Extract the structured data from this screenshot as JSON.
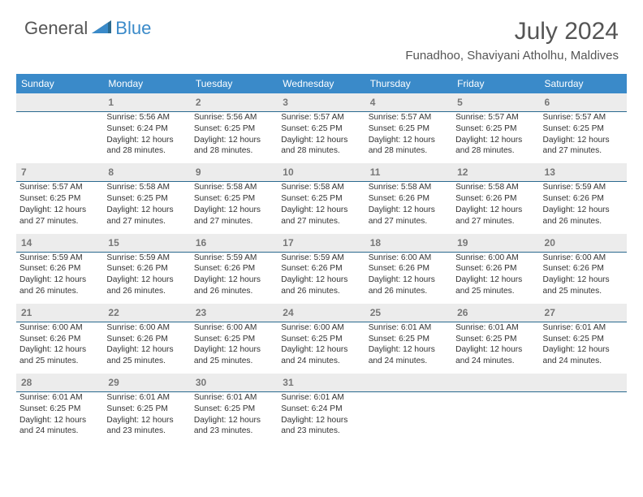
{
  "brand": {
    "text1": "General",
    "text2": "Blue"
  },
  "title": "July 2024",
  "location": "Funadhoo, Shaviyani Atholhu, Maldives",
  "colors": {
    "header_bg": "#3a8ac9",
    "header_text": "#ffffff",
    "daynum_bg": "#ececec",
    "daynum_text": "#777777",
    "rule": "#2b6a8f",
    "body_text": "#333333",
    "brand_gray": "#555555",
    "brand_blue": "#3a8ac9"
  },
  "fonts": {
    "title_size_pt": 22,
    "location_size_pt": 11,
    "header_size_pt": 9,
    "daynum_size_pt": 9,
    "cell_size_pt": 7.5
  },
  "weekdays": [
    "Sunday",
    "Monday",
    "Tuesday",
    "Wednesday",
    "Thursday",
    "Friday",
    "Saturday"
  ],
  "weeks": [
    {
      "nums": [
        "",
        "1",
        "2",
        "3",
        "4",
        "5",
        "6"
      ],
      "cells": [
        null,
        {
          "sunrise": "5:56 AM",
          "sunset": "6:24 PM",
          "daylight": "12 hours and 28 minutes."
        },
        {
          "sunrise": "5:56 AM",
          "sunset": "6:25 PM",
          "daylight": "12 hours and 28 minutes."
        },
        {
          "sunrise": "5:57 AM",
          "sunset": "6:25 PM",
          "daylight": "12 hours and 28 minutes."
        },
        {
          "sunrise": "5:57 AM",
          "sunset": "6:25 PM",
          "daylight": "12 hours and 28 minutes."
        },
        {
          "sunrise": "5:57 AM",
          "sunset": "6:25 PM",
          "daylight": "12 hours and 28 minutes."
        },
        {
          "sunrise": "5:57 AM",
          "sunset": "6:25 PM",
          "daylight": "12 hours and 27 minutes."
        }
      ]
    },
    {
      "nums": [
        "7",
        "8",
        "9",
        "10",
        "11",
        "12",
        "13"
      ],
      "cells": [
        {
          "sunrise": "5:57 AM",
          "sunset": "6:25 PM",
          "daylight": "12 hours and 27 minutes."
        },
        {
          "sunrise": "5:58 AM",
          "sunset": "6:25 PM",
          "daylight": "12 hours and 27 minutes."
        },
        {
          "sunrise": "5:58 AM",
          "sunset": "6:25 PM",
          "daylight": "12 hours and 27 minutes."
        },
        {
          "sunrise": "5:58 AM",
          "sunset": "6:25 PM",
          "daylight": "12 hours and 27 minutes."
        },
        {
          "sunrise": "5:58 AM",
          "sunset": "6:26 PM",
          "daylight": "12 hours and 27 minutes."
        },
        {
          "sunrise": "5:58 AM",
          "sunset": "6:26 PM",
          "daylight": "12 hours and 27 minutes."
        },
        {
          "sunrise": "5:59 AM",
          "sunset": "6:26 PM",
          "daylight": "12 hours and 26 minutes."
        }
      ]
    },
    {
      "nums": [
        "14",
        "15",
        "16",
        "17",
        "18",
        "19",
        "20"
      ],
      "cells": [
        {
          "sunrise": "5:59 AM",
          "sunset": "6:26 PM",
          "daylight": "12 hours and 26 minutes."
        },
        {
          "sunrise": "5:59 AM",
          "sunset": "6:26 PM",
          "daylight": "12 hours and 26 minutes."
        },
        {
          "sunrise": "5:59 AM",
          "sunset": "6:26 PM",
          "daylight": "12 hours and 26 minutes."
        },
        {
          "sunrise": "5:59 AM",
          "sunset": "6:26 PM",
          "daylight": "12 hours and 26 minutes."
        },
        {
          "sunrise": "6:00 AM",
          "sunset": "6:26 PM",
          "daylight": "12 hours and 26 minutes."
        },
        {
          "sunrise": "6:00 AM",
          "sunset": "6:26 PM",
          "daylight": "12 hours and 25 minutes."
        },
        {
          "sunrise": "6:00 AM",
          "sunset": "6:26 PM",
          "daylight": "12 hours and 25 minutes."
        }
      ]
    },
    {
      "nums": [
        "21",
        "22",
        "23",
        "24",
        "25",
        "26",
        "27"
      ],
      "cells": [
        {
          "sunrise": "6:00 AM",
          "sunset": "6:26 PM",
          "daylight": "12 hours and 25 minutes."
        },
        {
          "sunrise": "6:00 AM",
          "sunset": "6:26 PM",
          "daylight": "12 hours and 25 minutes."
        },
        {
          "sunrise": "6:00 AM",
          "sunset": "6:25 PM",
          "daylight": "12 hours and 25 minutes."
        },
        {
          "sunrise": "6:00 AM",
          "sunset": "6:25 PM",
          "daylight": "12 hours and 24 minutes."
        },
        {
          "sunrise": "6:01 AM",
          "sunset": "6:25 PM",
          "daylight": "12 hours and 24 minutes."
        },
        {
          "sunrise": "6:01 AM",
          "sunset": "6:25 PM",
          "daylight": "12 hours and 24 minutes."
        },
        {
          "sunrise": "6:01 AM",
          "sunset": "6:25 PM",
          "daylight": "12 hours and 24 minutes."
        }
      ]
    },
    {
      "nums": [
        "28",
        "29",
        "30",
        "31",
        "",
        "",
        ""
      ],
      "cells": [
        {
          "sunrise": "6:01 AM",
          "sunset": "6:25 PM",
          "daylight": "12 hours and 24 minutes."
        },
        {
          "sunrise": "6:01 AM",
          "sunset": "6:25 PM",
          "daylight": "12 hours and 23 minutes."
        },
        {
          "sunrise": "6:01 AM",
          "sunset": "6:25 PM",
          "daylight": "12 hours and 23 minutes."
        },
        {
          "sunrise": "6:01 AM",
          "sunset": "6:24 PM",
          "daylight": "12 hours and 23 minutes."
        },
        null,
        null,
        null
      ]
    }
  ],
  "labels": {
    "sunrise": "Sunrise:",
    "sunset": "Sunset:",
    "daylight": "Daylight:"
  }
}
